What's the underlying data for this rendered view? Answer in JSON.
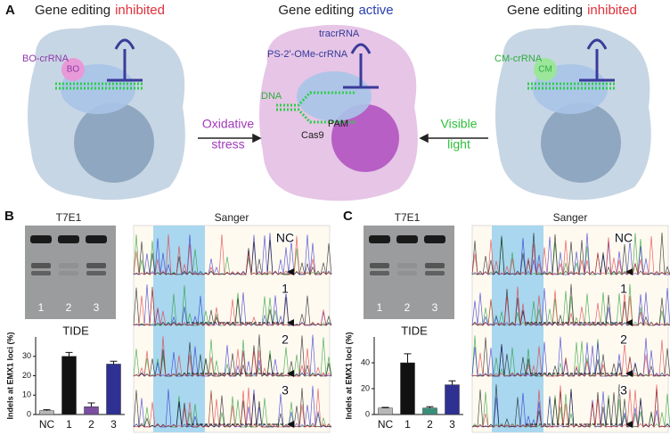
{
  "panel_a": {
    "label": "A",
    "left": {
      "title": "Gene editing",
      "state": "inhibited",
      "crrna": "BO-crRNA",
      "group": "BO"
    },
    "middle": {
      "title": "Gene editing",
      "state": "active",
      "tracrrna": "tracrRNA",
      "crrna": "PS-2'-OMe-crRNA",
      "dna": "DNA",
      "cas9": "Cas9",
      "pam": "PAM"
    },
    "right": {
      "title": "Gene editing",
      "state": "inhibited",
      "crrna": "CM-crRNA",
      "group": "CM"
    },
    "stimulus_left": [
      "Oxidative",
      "stress"
    ],
    "stimulus_right": [
      "Visible",
      "light"
    ]
  },
  "panel_b": {
    "label": "B",
    "gel_title": "T7E1",
    "lanes": [
      "1",
      "2",
      "3"
    ],
    "sanger_title": "Sanger",
    "traces": [
      "NC",
      "1",
      "2",
      "3"
    ],
    "chart_data": {
      "type": "bar",
      "title": "TIDE",
      "y_label": "Indels at EMX1 loci (%)",
      "categories": [
        "NC",
        "1",
        "2",
        "3"
      ],
      "values": [
        2,
        30,
        4,
        26
      ],
      "errors": [
        0.5,
        2,
        2,
        1.5
      ],
      "colors": [
        "#b8b8b8",
        "#111111",
        "#7b4ea0",
        "#2e3192"
      ],
      "ylim": [
        0,
        40
      ],
      "yticks": [
        0,
        10,
        20,
        30
      ]
    }
  },
  "panel_c": {
    "label": "C",
    "gel_title": "T7E1",
    "lanes": [
      "1",
      "2",
      "3"
    ],
    "sanger_title": "Sanger",
    "traces": [
      "NC",
      "1",
      "2",
      "3"
    ],
    "chart_data": {
      "type": "bar",
      "title": "TIDE",
      "y_label": "Indels at EMX1 loci (%)",
      "categories": [
        "NC",
        "1",
        "2",
        "3"
      ],
      "values": [
        5,
        40,
        5,
        23
      ],
      "errors": [
        0.5,
        7,
        1,
        3
      ],
      "colors": [
        "#b8b8b8",
        "#111111",
        "#3a8f7a",
        "#2e3192"
      ],
      "ylim": [
        0,
        60
      ],
      "yticks": [
        0,
        20,
        40
      ]
    }
  }
}
